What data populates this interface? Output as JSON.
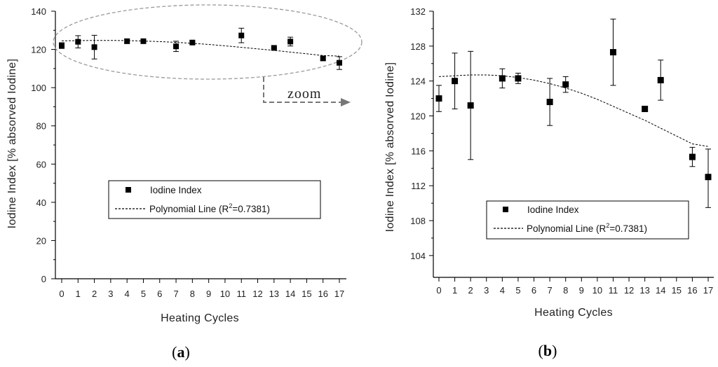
{
  "chart_data": [
    {
      "panel": "a",
      "type": "scatter",
      "xlabel": "Heating Cycles",
      "ylabel": "Iodine Index [% absorved Iodine]",
      "xlim": [
        0,
        17
      ],
      "ylim": [
        0,
        140
      ],
      "xticks": [
        0,
        1,
        2,
        3,
        4,
        5,
        6,
        7,
        8,
        9,
        10,
        11,
        12,
        13,
        14,
        15,
        16,
        17
      ],
      "yticks": [
        0,
        20,
        40,
        60,
        80,
        100,
        120,
        140
      ],
      "series": [
        {
          "name": "Iodine Index",
          "kind": "points_with_error",
          "x": [
            0,
            1,
            2,
            4,
            5,
            7,
            8,
            11,
            13,
            14,
            16,
            17
          ],
          "y": [
            122,
            124,
            121.2,
            124.3,
            124.3,
            121.6,
            123.6,
            127.3,
            120.8,
            124.1,
            115.3,
            113
          ],
          "err_low": [
            1.5,
            3.2,
            6.2,
            1.1,
            0.6,
            2.7,
            0.9,
            3.8,
            0.3,
            2.3,
            1.1,
            3.5
          ],
          "err_high": [
            1.5,
            3.2,
            6.2,
            1.1,
            0.6,
            2.7,
            0.9,
            3.8,
            0.3,
            2.3,
            1.1,
            3.2
          ]
        },
        {
          "name": "Polynomial Line",
          "kind": "dashed_line",
          "x": [
            0,
            1,
            2,
            3,
            4,
            5,
            6,
            7,
            8,
            9,
            10,
            11,
            12,
            13,
            14,
            15,
            16,
            17
          ],
          "y": [
            124.5,
            124.6,
            124.7,
            124.7,
            124.6,
            124.4,
            124.1,
            123.7,
            123.2,
            122.6,
            121.9,
            121.1,
            120.3,
            119.5,
            118.6,
            117.7,
            116.8,
            116.5
          ]
        }
      ],
      "legend": {
        "position": "center",
        "entries": [
          "Iodine Index",
          "Polynomial Line (R",
          "2",
          "=0.7381)"
        ]
      },
      "annotations": {
        "zoom_label": "zoom"
      },
      "panel_label": {
        "open": "(",
        "letter": "a",
        "close": ")"
      }
    },
    {
      "panel": "b",
      "type": "scatter",
      "xlabel": "Heating Cycles",
      "ylabel": "Iodine Index [% absorved Iodine]",
      "xlim": [
        0,
        17
      ],
      "ylim": [
        101.5,
        132
      ],
      "xticks": [
        0,
        1,
        2,
        3,
        4,
        5,
        6,
        7,
        8,
        9,
        10,
        11,
        12,
        13,
        14,
        15,
        16,
        17
      ],
      "yticks": [
        104,
        108,
        112,
        116,
        120,
        124,
        128,
        132
      ],
      "series": [
        {
          "name": "Iodine Index",
          "kind": "points_with_error",
          "x": [
            0,
            1,
            2,
            4,
            5,
            7,
            8,
            11,
            13,
            14,
            16,
            17
          ],
          "y": [
            122,
            124,
            121.2,
            124.3,
            124.3,
            121.6,
            123.6,
            127.3,
            120.8,
            124.1,
            115.3,
            113
          ],
          "err_low": [
            1.5,
            3.2,
            6.2,
            1.1,
            0.6,
            2.7,
            0.9,
            3.8,
            0.3,
            2.3,
            1.1,
            3.5
          ],
          "err_high": [
            1.5,
            3.2,
            6.2,
            1.1,
            0.6,
            2.7,
            0.9,
            3.8,
            0.3,
            2.3,
            1.1,
            3.2
          ]
        },
        {
          "name": "Polynomial Line",
          "kind": "dashed_line",
          "x": [
            0,
            1,
            2,
            3,
            4,
            5,
            6,
            7,
            8,
            9,
            10,
            11,
            12,
            13,
            14,
            15,
            16,
            17
          ],
          "y": [
            124.5,
            124.6,
            124.7,
            124.7,
            124.6,
            124.4,
            124.1,
            123.7,
            123.2,
            122.6,
            121.9,
            121.1,
            120.3,
            119.5,
            118.6,
            117.7,
            116.8,
            116.5
          ]
        }
      ],
      "legend": {
        "position": "lower-center",
        "entries": [
          "Iodine Index",
          "Polynomial Line (R",
          "2",
          "=0.7381)"
        ]
      },
      "panel_label": {
        "open": "(",
        "letter": "b",
        "close": ")"
      }
    }
  ]
}
